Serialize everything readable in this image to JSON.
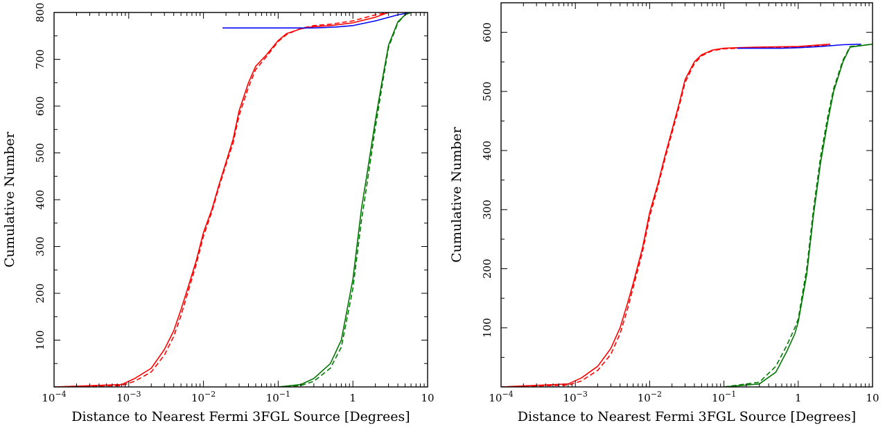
{
  "chart_data": [
    {
      "type": "line",
      "xscale": "log",
      "xlim": [
        0.0001,
        10
      ],
      "ylim": [
        0,
        800
      ],
      "xlabel": "Distance to Nearest Fermi 3FGL Source [Degrees]",
      "ylabel": "Cumulative Number",
      "xticks": [
        {
          "value": 0.0001,
          "base": "10",
          "exp": "−4"
        },
        {
          "value": 0.001,
          "base": "10",
          "exp": "−3"
        },
        {
          "value": 0.01,
          "base": "10",
          "exp": "−2"
        },
        {
          "value": 0.1,
          "base": "10",
          "exp": "−1"
        },
        {
          "value": 1,
          "base": "1",
          "exp": ""
        },
        {
          "value": 10,
          "base": "10",
          "exp": ""
        }
      ],
      "yticks": [
        100,
        200,
        300,
        400,
        500,
        600,
        700,
        800
      ],
      "series": [
        {
          "color": "#ff0000",
          "style": "solid",
          "x": [
            0.0001,
            0.0008,
            0.0012,
            0.002,
            0.003,
            0.004,
            0.005,
            0.006,
            0.008,
            0.01,
            0.013,
            0.016,
            0.02,
            0.025,
            0.03,
            0.04,
            0.05,
            0.07,
            0.1,
            0.13,
            0.2,
            0.3,
            0.5,
            1,
            2,
            3
          ],
          "y": [
            0,
            5,
            18,
            40,
            80,
            120,
            165,
            205,
            270,
            330,
            380,
            430,
            480,
            530,
            590,
            650,
            685,
            710,
            740,
            755,
            765,
            770,
            772,
            778,
            790,
            800
          ]
        },
        {
          "color": "#ff0000",
          "style": "dashed",
          "x": [
            0.0001,
            0.0008,
            0.0012,
            0.002,
            0.003,
            0.004,
            0.005,
            0.006,
            0.008,
            0.01,
            0.013,
            0.016,
            0.02,
            0.025,
            0.03,
            0.04,
            0.05,
            0.07,
            0.1,
            0.13,
            0.2,
            0.3,
            0.5,
            1,
            2,
            3
          ],
          "y": [
            0,
            3,
            12,
            32,
            68,
            108,
            152,
            195,
            262,
            322,
            375,
            425,
            475,
            522,
            580,
            640,
            678,
            706,
            738,
            753,
            766,
            772,
            775,
            782,
            795,
            800
          ]
        },
        {
          "color": "#0000ff",
          "style": "solid",
          "x": [
            0.018,
            0.05,
            0.1,
            0.3,
            0.6,
            1,
            2,
            4,
            6
          ],
          "y": [
            767,
            767,
            767,
            767,
            769,
            772,
            782,
            795,
            800
          ]
        },
        {
          "color": "#007700",
          "style": "solid",
          "x": [
            0.1,
            0.2,
            0.3,
            0.5,
            0.7,
            1,
            1.3,
            1.6,
            2,
            2.5,
            3,
            4,
            5,
            6
          ],
          "y": [
            0,
            5,
            18,
            50,
            100,
            230,
            380,
            470,
            570,
            660,
            730,
            780,
            795,
            800
          ]
        },
        {
          "color": "#007700",
          "style": "dashed",
          "x": [
            0.1,
            0.2,
            0.3,
            0.5,
            0.7,
            1,
            1.3,
            1.6,
            2,
            2.5,
            3,
            4,
            5,
            6
          ],
          "y": [
            0,
            3,
            12,
            40,
            85,
            210,
            355,
            450,
            555,
            650,
            725,
            778,
            795,
            800
          ]
        }
      ]
    },
    {
      "type": "line",
      "xscale": "log",
      "xlim": [
        0.0001,
        10
      ],
      "ylim": [
        0,
        650
      ],
      "xlabel": "Distance to Nearest Fermi 3FGL Source [Degrees]",
      "ylabel": "Cumulative Number",
      "xticks": [
        {
          "value": 0.0001,
          "base": "10",
          "exp": "−4"
        },
        {
          "value": 0.001,
          "base": "10",
          "exp": "−3"
        },
        {
          "value": 0.01,
          "base": "10",
          "exp": "−2"
        },
        {
          "value": 0.1,
          "base": "10",
          "exp": "−1"
        },
        {
          "value": 1,
          "base": "1",
          "exp": ""
        },
        {
          "value": 10,
          "base": "10",
          "exp": ""
        }
      ],
      "yticks": [
        100,
        200,
        300,
        400,
        500,
        600
      ],
      "series": [
        {
          "color": "#ff0000",
          "style": "solid",
          "x": [
            0.0001,
            0.0008,
            0.0012,
            0.002,
            0.003,
            0.004,
            0.005,
            0.006,
            0.008,
            0.01,
            0.013,
            0.016,
            0.02,
            0.025,
            0.03,
            0.04,
            0.05,
            0.07,
            0.1,
            0.15,
            0.3,
            1,
            2.7
          ],
          "y": [
            0,
            5,
            15,
            35,
            65,
            100,
            140,
            175,
            235,
            295,
            345,
            390,
            435,
            480,
            520,
            550,
            562,
            570,
            573,
            574,
            575,
            576,
            580
          ]
        },
        {
          "color": "#ff0000",
          "style": "dashed",
          "x": [
            0.0001,
            0.0008,
            0.0012,
            0.002,
            0.003,
            0.004,
            0.005,
            0.006,
            0.008,
            0.01,
            0.013,
            0.016,
            0.02,
            0.025,
            0.03,
            0.04,
            0.05,
            0.07,
            0.1,
            0.15,
            0.3,
            1,
            2.7
          ],
          "y": [
            0,
            3,
            10,
            28,
            55,
            90,
            130,
            168,
            228,
            288,
            340,
            385,
            430,
            475,
            515,
            547,
            560,
            569,
            572,
            573,
            574,
            575,
            579
          ]
        },
        {
          "color": "#0000ff",
          "style": "solid",
          "x": [
            0.15,
            0.3,
            0.6,
            1,
            2,
            4,
            7
          ],
          "y": [
            573,
            573,
            573,
            574,
            576,
            579,
            580
          ]
        },
        {
          "color": "#007700",
          "style": "solid",
          "x": [
            0.1,
            0.3,
            0.5,
            0.7,
            0.9,
            1,
            1.3,
            1.6,
            2,
            2.5,
            3,
            4,
            5,
            10
          ],
          "y": [
            0,
            5,
            25,
            60,
            90,
            110,
            190,
            290,
            380,
            450,
            500,
            550,
            575,
            580
          ]
        },
        {
          "color": "#007700",
          "style": "dashed",
          "x": [
            0.1,
            0.3,
            0.5,
            0.7,
            0.9,
            1,
            1.3,
            1.6,
            2,
            2.5,
            3,
            4,
            5,
            10
          ],
          "y": [
            0,
            8,
            35,
            70,
            100,
            115,
            200,
            300,
            390,
            458,
            505,
            553,
            576,
            580
          ]
        }
      ]
    }
  ]
}
